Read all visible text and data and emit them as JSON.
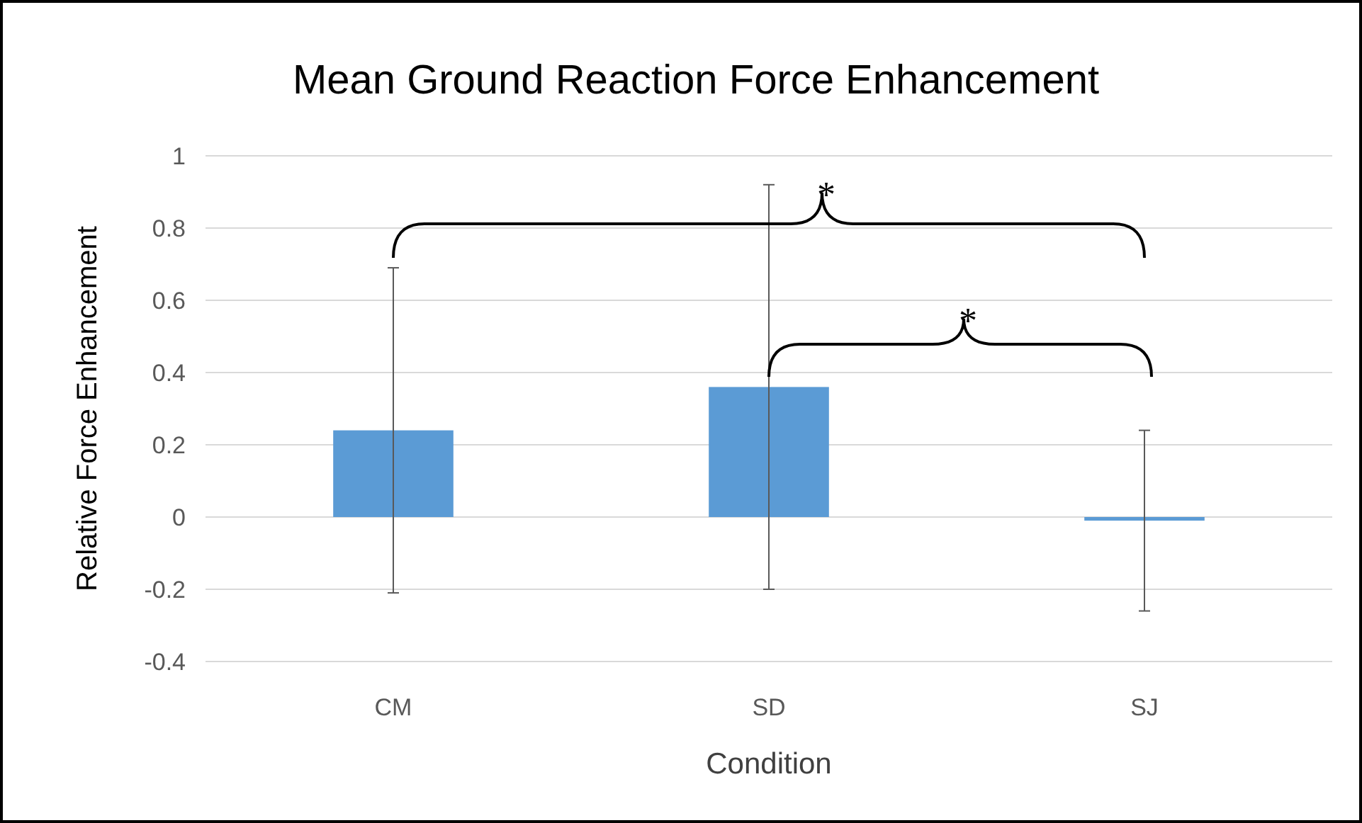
{
  "chart_data": {
    "type": "bar",
    "title": "Mean Ground Reaction Force Enhancement",
    "xlabel": "Condition",
    "ylabel": "Relative Force Enhancement",
    "categories": [
      "CM",
      "SD",
      "SJ"
    ],
    "values": [
      0.24,
      0.36,
      -0.01
    ],
    "errors": [
      0.45,
      0.56,
      0.25
    ],
    "color": "#5b9bd5",
    "ylim": [
      -0.4,
      1
    ],
    "yticks": [
      -0.4,
      -0.2,
      0,
      0.2,
      0.4,
      0.6,
      0.8,
      1
    ],
    "grid": "y",
    "annotations": [
      "*",
      "*"
    ]
  }
}
